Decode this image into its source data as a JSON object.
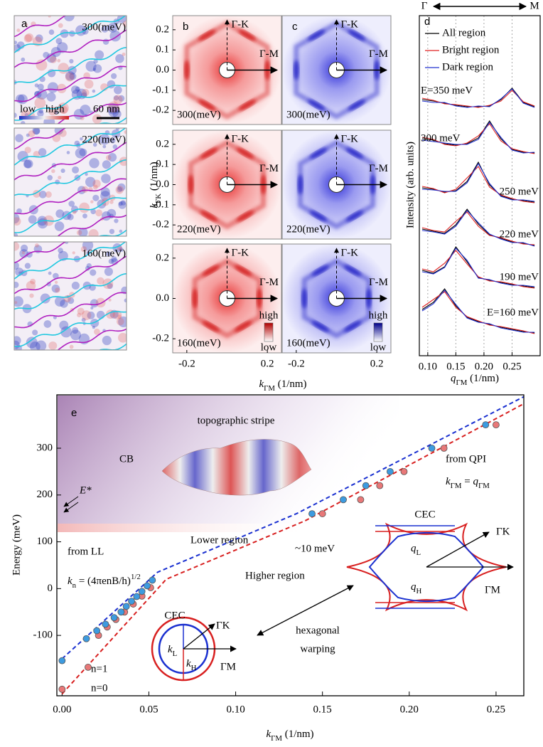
{
  "panel_a": {
    "label": "a",
    "energies": [
      "300(meV)",
      "220(meV)",
      "160(meV)"
    ],
    "low": "low",
    "high": "high",
    "scale_bar": "60 nm"
  },
  "fft": {
    "xlim": [
      -0.27,
      0.27
    ],
    "ylim": [
      -0.27,
      0.27
    ],
    "columns": [
      {
        "label": "b",
        "color": "#d42020"
      },
      {
        "label": "c",
        "color": "#2a2ac8"
      }
    ],
    "rows": [
      {
        "energy": "300(meV)",
        "yticks": [
          0.2,
          0.1,
          {
            "value": 0,
            "label": "0.0"
          },
          -0.1,
          -0.2
        ]
      },
      {
        "energy": "220(meV)",
        "yticks": [
          0.2,
          0.1,
          {
            "value": 0,
            "label": "0.0"
          },
          -0.1,
          -0.2
        ]
      },
      {
        "energy": "160(meV)",
        "yticks": [
          0.2,
          {
            "value": 0,
            "label": "0.0"
          },
          -0.2
        ]
      }
    ],
    "xticks": [
      -0.2,
      0.2
    ],
    "gamma_k": "Γ-K",
    "gamma_m": "Γ-M",
    "xlabel": [
      "k",
      "ΓM",
      " (1/nm)"
    ],
    "ylabel": [
      "k",
      "ΓK",
      " (1/nm)"
    ],
    "high": "high",
    "low": "low"
  },
  "chart_data": [
    {
      "type": "line",
      "label": "d",
      "direction": {
        "from": "Γ",
        "to": "M"
      },
      "xlabel": [
        "q",
        "ΓM",
        " (1/nm)"
      ],
      "ylabel": "Intensity (arb. units)",
      "x": [
        0.09,
        0.11,
        0.13,
        0.15,
        0.17,
        0.19,
        0.21,
        0.23,
        0.25,
        0.27,
        0.29
      ],
      "xlim": [
        0.085,
        0.3
      ],
      "xticks": [
        {
          "value": 0.1,
          "label": "0.10"
        },
        0.15,
        {
          "value": 0.2,
          "label": "0.20"
        },
        0.25
      ],
      "ylim": [
        0,
        47.8
      ],
      "grid": true,
      "group_labels": [
        "E=350 meV",
        "300 meV",
        "250 meV",
        "220 meV",
        "190 meV",
        "E=160 meV"
      ],
      "series": [
        {
          "name": "All region",
          "color": "#000000",
          "values": [
            [
              36.0,
              35.8,
              35.5,
              35.2,
              35.0,
              35.0,
              35.1,
              36.0,
              37.6,
              35.6,
              35.0
            ],
            [
              30.5,
              30.3,
              29.8,
              29.6,
              29.8,
              30.6,
              33.0,
              30.5,
              29.0,
              28.6,
              28.5
            ],
            [
              23.6,
              23.4,
              23.0,
              23.2,
              24.5,
              27.2,
              24.0,
              22.5,
              22.0,
              21.8,
              21.6
            ],
            [
              17.8,
              17.5,
              17.2,
              18.4,
              20.6,
              18.5,
              17.0,
              16.5,
              16.0,
              15.8,
              15.5
            ],
            [
              12.0,
              11.6,
              12.5,
              15.3,
              13.2,
              11.0,
              10.6,
              10.3,
              10.0,
              9.8,
              9.6
            ],
            [
              6.5,
              7.5,
              9.4,
              7.0,
              5.4,
              4.8,
              4.4,
              4.0,
              3.7,
              3.4,
              3.2
            ]
          ]
        },
        {
          "name": "Bright region",
          "color": "#e02020",
          "values": [
            [
              36.2,
              35.9,
              35.4,
              35.3,
              35.1,
              34.9,
              35.2,
              35.8,
              37.3,
              35.7,
              35.1
            ],
            [
              30.7,
              30.4,
              29.7,
              29.5,
              29.9,
              30.9,
              32.6,
              30.2,
              29.1,
              28.7,
              28.4
            ],
            [
              23.8,
              23.5,
              22.9,
              23.4,
              25.0,
              26.6,
              23.7,
              22.6,
              22.1,
              21.7,
              21.5
            ],
            [
              18.0,
              17.6,
              17.4,
              18.9,
              20.2,
              18.2,
              16.9,
              16.6,
              16.1,
              15.7,
              15.6
            ],
            [
              12.2,
              11.8,
              13.0,
              14.8,
              12.9,
              11.1,
              10.5,
              10.4,
              10.1,
              9.7,
              9.5
            ],
            [
              6.8,
              7.9,
              9.0,
              6.8,
              5.5,
              4.9,
              4.3,
              4.1,
              3.8,
              3.5,
              3.1
            ]
          ]
        },
        {
          "name": "Dark region",
          "color": "#2030d0",
          "values": [
            [
              35.8,
              35.6,
              35.6,
              35.1,
              34.9,
              35.1,
              35.0,
              36.1,
              37.5,
              35.5,
              34.9
            ],
            [
              30.3,
              30.1,
              29.9,
              29.7,
              29.7,
              30.4,
              32.8,
              30.7,
              28.9,
              28.5,
              28.6
            ],
            [
              23.4,
              23.3,
              23.1,
              23.1,
              24.3,
              27.0,
              24.2,
              22.4,
              21.9,
              21.9,
              21.7
            ],
            [
              17.6,
              17.4,
              17.1,
              18.2,
              20.4,
              18.7,
              17.1,
              16.4,
              15.9,
              15.9,
              15.4
            ],
            [
              11.8,
              11.5,
              12.4,
              15.1,
              13.4,
              10.9,
              10.7,
              10.2,
              9.9,
              9.9,
              9.7
            ],
            [
              6.3,
              7.3,
              9.2,
              7.2,
              5.3,
              4.7,
              4.5,
              3.9,
              3.6,
              3.3,
              3.3
            ]
          ]
        }
      ]
    },
    {
      "type": "scatter",
      "label": "e",
      "xlabel": [
        "k",
        "ΓM",
        " (1/nm)"
      ],
      "ylabel": "Energy (meV)",
      "xlim": [
        -0.003,
        0.266
      ],
      "ylim": [
        -229,
        414
      ],
      "xticks": [
        {
          "value": 0,
          "label": "0.00"
        },
        0.05,
        {
          "value": 0.1,
          "label": "0.10"
        },
        0.15,
        {
          "value": 0.2,
          "label": "0.20"
        },
        0.25
      ],
      "yticks": [
        -100,
        0,
        100,
        200,
        300
      ],
      "series": [
        {
          "name": "Lower region",
          "color": "#3d9be0",
          "x": [
            0.0,
            0.014,
            0.02,
            0.025,
            0.03,
            0.034,
            0.037,
            0.04,
            0.043,
            0.046,
            0.049,
            0.052,
            0.144,
            0.162,
            0.175,
            0.189,
            0.213,
            0.244
          ],
          "values": [
            -154,
            -107,
            -90,
            -76,
            -62,
            -50,
            -38,
            -27,
            -17,
            -6,
            6,
            18,
            160,
            190,
            220,
            250,
            300,
            350
          ]
        },
        {
          "name": "Higher region",
          "color": "#e87878",
          "x": [
            0.0,
            0.015,
            0.021,
            0.026,
            0.031,
            0.036,
            0.041,
            0.046,
            0.051,
            0.15,
            0.172,
            0.183,
            0.197,
            0.22,
            0.25
          ],
          "values": [
            -215,
            -168,
            -100,
            -82,
            -66,
            -50,
            -33,
            -16,
            2,
            160,
            190,
            220,
            250,
            300,
            350
          ]
        }
      ],
      "fits": [
        {
          "color": "#1a30d0",
          "x": [
            0,
            0.055,
            0.135,
            0.266
          ],
          "y": [
            -150,
            35,
            160,
            410
          ]
        },
        {
          "color": "#d82020",
          "x": [
            0,
            0.06,
            0.14,
            0.266
          ],
          "y": [
            -225,
            20,
            145,
            395
          ]
        }
      ],
      "annotations": {
        "stripe": "topographic stripe",
        "cb": "CB",
        "e_star": "E*",
        "gap": "~10 meV",
        "from_ll": "from LL",
        "formula": [
          "k",
          "n",
          " = (4πenB/h)",
          "1/2"
        ],
        "n1": "n=1",
        "n0": "n=0",
        "from_qpi": "from QPI",
        "relation": [
          "k",
          "ΓM",
          " = ",
          "q",
          "ΓM"
        ],
        "cec_big": "CEC",
        "gk_big": "ΓK",
        "gm_big": "ΓM",
        "q_l": [
          "q",
          "L"
        ],
        "q_h": [
          "q",
          "H"
        ],
        "cec_small": "CEC",
        "gk_small": "ΓK",
        "gm_small": "ΓM",
        "k_l": [
          "k",
          "L"
        ],
        "k_h": [
          "k",
          "H"
        ],
        "warping": [
          "hexagonal",
          "warping"
        ]
      }
    }
  ]
}
